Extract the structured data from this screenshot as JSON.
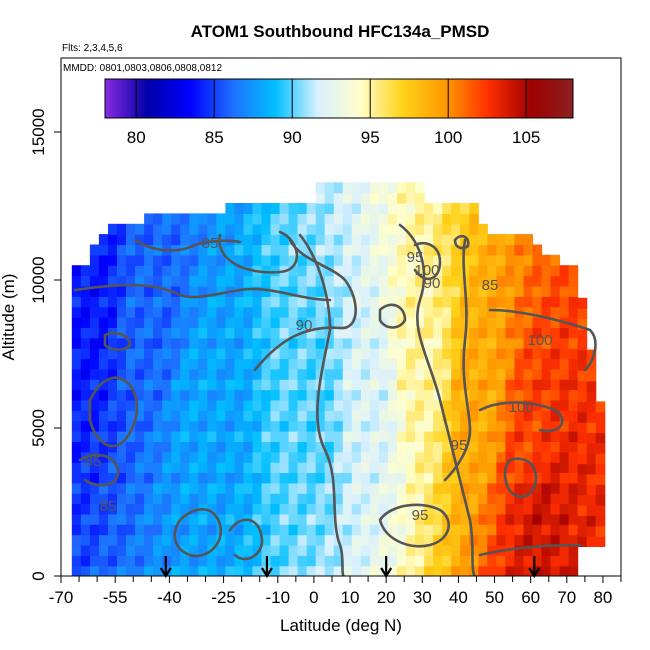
{
  "chart_data": {
    "type": "heatmap",
    "title": "ATOM1 Southbound HFC134a_PMSD",
    "subtitle_flights": "Flts: 2,3,4,5,6",
    "subtitle_dates": "MMDD: 0801,0803,0806,0808,0812",
    "xlabel": "Latitude (deg N)",
    "ylabel": "Altitude (m)",
    "xlim": [
      -70,
      85
    ],
    "ylim": [
      0,
      17500
    ],
    "x_ticks": [
      "-70",
      "-55",
      "-40",
      "-25",
      "-10",
      "0",
      "10",
      "20",
      "30",
      "40",
      "50",
      "60",
      "70",
      "80"
    ],
    "x_tick_values": [
      -70,
      -55,
      -40,
      -25,
      -10,
      0,
      10,
      20,
      30,
      40,
      50,
      60,
      70,
      80
    ],
    "y_ticks": [
      "0",
      "5000",
      "10000",
      "15000"
    ],
    "y_tick_values": [
      0,
      5000,
      10000,
      15000
    ],
    "colorbar": {
      "range": [
        78,
        108
      ],
      "ticks": [
        "80",
        "85",
        "90",
        "95",
        "100",
        "105"
      ],
      "tick_values": [
        80,
        85,
        90,
        95,
        100,
        105
      ],
      "colors": [
        "#8a2be2",
        "#0000a8",
        "#0000ff",
        "#1f6fff",
        "#00bfff",
        "#d8f0ff",
        "#ffffcc",
        "#ffd21a",
        "#ff9a00",
        "#ff3000",
        "#a00000",
        "#8b2020"
      ]
    },
    "contour_labels": [
      "85",
      "90",
      "90",
      "95",
      "95",
      "95",
      "100",
      "100",
      "100",
      "85",
      "85",
      "85"
    ],
    "contour_label_values": [
      85,
      90,
      90,
      95,
      95,
      95,
      100,
      100,
      100,
      85,
      85,
      85
    ],
    "flight_markers_lat": [
      -41,
      -13,
      20,
      61
    ],
    "regions": [
      {
        "lat": -63,
        "alt": 9500,
        "value": 84
      },
      {
        "lat": -45,
        "alt": 9000,
        "value": 86
      },
      {
        "lat": -30,
        "alt": 6000,
        "value": 88
      },
      {
        "lat": 0,
        "alt": 6000,
        "value": 90
      },
      {
        "lat": 15,
        "alt": 6000,
        "value": 92
      },
      {
        "lat": 30,
        "alt": 7000,
        "value": 95
      },
      {
        "lat": 45,
        "alt": 6000,
        "value": 99
      },
      {
        "lat": 60,
        "alt": 4000,
        "value": 102
      },
      {
        "lat": 62,
        "alt": 2500,
        "value": 104
      }
    ]
  }
}
